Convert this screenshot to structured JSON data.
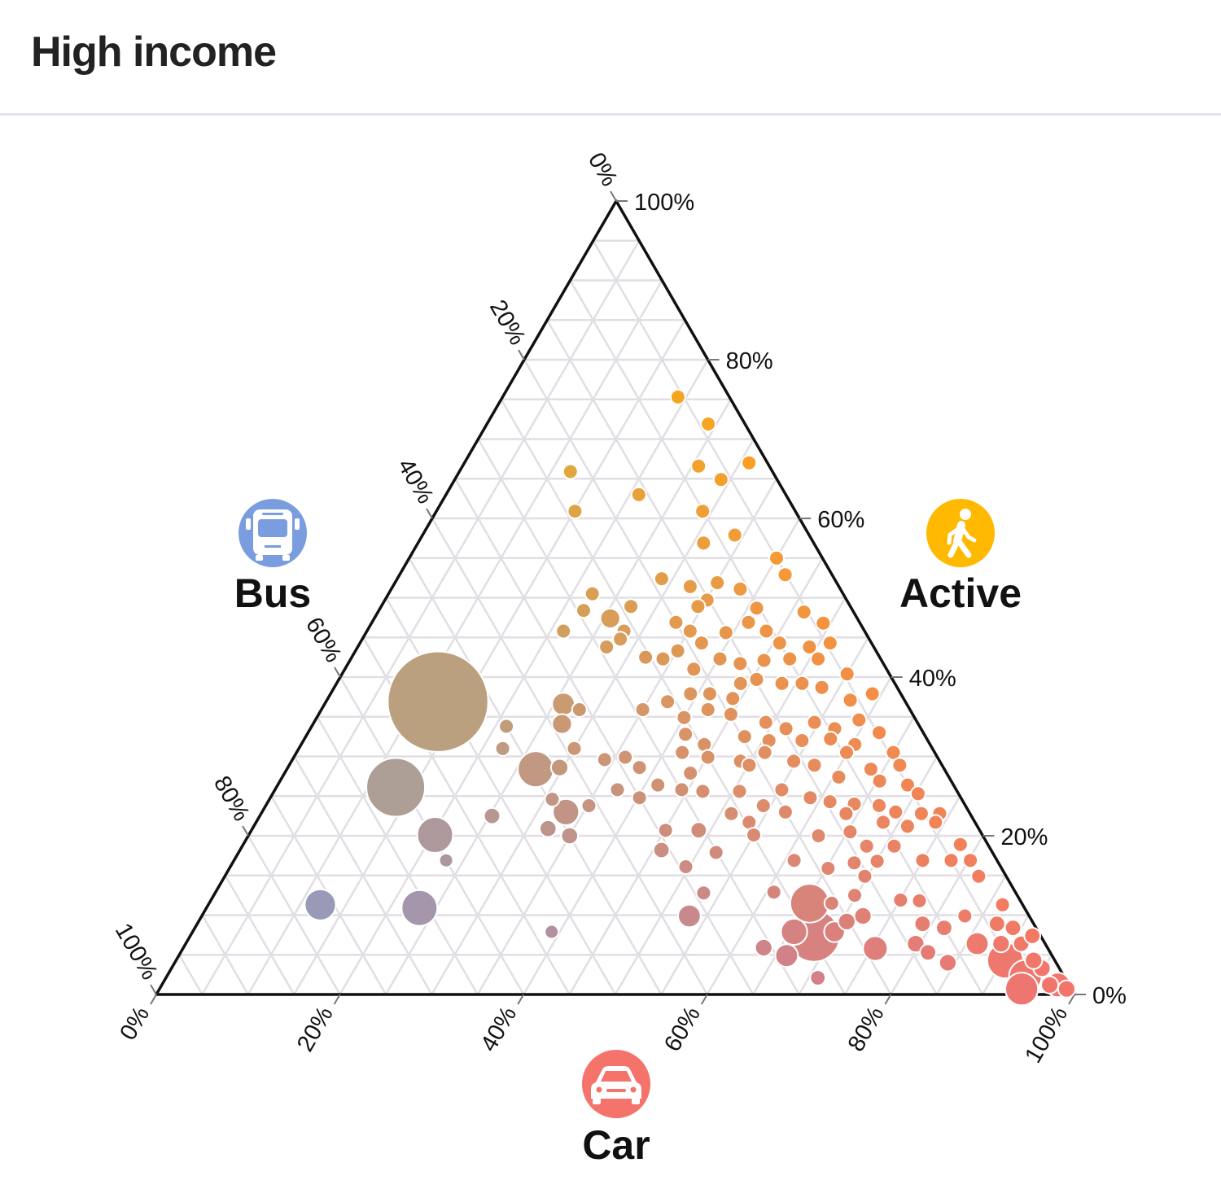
{
  "header": {
    "title": "High income"
  },
  "chart_data": {
    "type": "scatter",
    "subtype": "ternary",
    "title": "High income",
    "axes": {
      "car": {
        "label": "Car",
        "icon": "car-icon",
        "color": "#f4736b",
        "ticks": [
          "0%",
          "20%",
          "40%",
          "60%",
          "80%",
          "100%"
        ]
      },
      "active": {
        "label": "Active",
        "icon": "walking-person-icon",
        "color": "#ffb400",
        "ticks": [
          "0%",
          "20%",
          "40%",
          "60%",
          "80%",
          "100%"
        ]
      },
      "bus": {
        "label": "Bus",
        "icon": "bus-icon",
        "color": "#7a9de0",
        "ticks": [
          "0%",
          "20%",
          "40%",
          "60%",
          "80%",
          "100%"
        ]
      }
    },
    "grid": true,
    "grid_step_percent": 5,
    "point_fields": [
      "car_pct",
      "active_pct",
      "relative_size"
    ],
    "points": [
      [
        19.1,
        75.3,
        1
      ],
      [
        24.1,
        71.9,
        1
      ],
      [
        31.0,
        67.0,
        1
      ],
      [
        25.7,
        66.6,
        1
      ],
      [
        29.0,
        64.9,
        1
      ],
      [
        12.1,
        65.9,
        1
      ],
      [
        21.0,
        63.0,
        1
      ],
      [
        15.1,
        60.9,
        1
      ],
      [
        29.0,
        60.9,
        1
      ],
      [
        34.0,
        57.9,
        1
      ],
      [
        31.1,
        56.9,
        1
      ],
      [
        40.0,
        55.0,
        1
      ],
      [
        42.0,
        52.9,
        1
      ],
      [
        28.8,
        52.4,
        1
      ],
      [
        32.4,
        51.4,
        1
      ],
      [
        35.1,
        51.9,
        1
      ],
      [
        38.0,
        51.1,
        1
      ],
      [
        22.2,
        50.5,
        1
      ],
      [
        22.3,
        48.4,
        1
      ],
      [
        25.7,
        47.4,
        1.8
      ],
      [
        27.2,
        48.9,
        1
      ],
      [
        35.1,
        49.7,
        1
      ],
      [
        34.5,
        48.9,
        1
      ],
      [
        41.0,
        48.7,
        1
      ],
      [
        46.4,
        48.2,
        1
      ],
      [
        49.2,
        46.8,
        1
      ],
      [
        21.4,
        45.8,
        1
      ],
      [
        28.0,
        45.8,
        1
      ],
      [
        28.1,
        44.8,
        1
      ],
      [
        27.1,
        43.8,
        1
      ],
      [
        33.1,
        46.9,
        1
      ],
      [
        35.2,
        45.8,
        1
      ],
      [
        39.2,
        45.6,
        1
      ],
      [
        41.0,
        46.9,
        1
      ],
      [
        43.5,
        45.8,
        1
      ],
      [
        45.7,
        44.3,
        1
      ],
      [
        49.2,
        43.8,
        1
      ],
      [
        51.2,
        44.3,
        1
      ],
      [
        32.0,
        42.5,
        1
      ],
      [
        34.0,
        42.3,
        1
      ],
      [
        35.1,
        43.3,
        1
      ],
      [
        37.2,
        44.3,
        1
      ],
      [
        38.0,
        41.0,
        1
      ],
      [
        40.2,
        42.3,
        1
      ],
      [
        42.7,
        41.7,
        1
      ],
      [
        45.1,
        42.1,
        1
      ],
      [
        47.8,
        42.3,
        1
      ],
      [
        50.9,
        42.3,
        1
      ],
      [
        55.0,
        40.4,
        1
      ],
      [
        44.0,
        39.2,
        1
      ],
      [
        45.5,
        39.7,
        1
      ],
      [
        48.5,
        39.2,
        1
      ],
      [
        50.7,
        39.2,
        1
      ],
      [
        53.1,
        38.7,
        1
      ],
      [
        57.0,
        37.1,
        1
      ],
      [
        59.0,
        37.9,
        1
      ],
      [
        37.2,
        36.9,
        1
      ],
      [
        39.2,
        37.9,
        1
      ],
      [
        41.3,
        37.9,
        1
      ],
      [
        44.1,
        37.3,
        1
      ],
      [
        35.0,
        35.9,
        1
      ],
      [
        26.0,
        36.6,
        2.4
      ],
      [
        28.1,
        35.9,
        1
      ],
      [
        27.1,
        34.1,
        1.8
      ],
      [
        21.2,
        33.8,
        1
      ],
      [
        12.2,
        36.9,
        47
      ],
      [
        40.0,
        34.9,
        1
      ],
      [
        42.1,
        35.9,
        1
      ],
      [
        44.9,
        35.3,
        1
      ],
      [
        49.2,
        34.3,
        1
      ],
      [
        51.8,
        33.5,
        1
      ],
      [
        54.5,
        34.3,
        1
      ],
      [
        57.1,
        33.5,
        1
      ],
      [
        59.2,
        34.6,
        1
      ],
      [
        62.2,
        33.0,
        1
      ],
      [
        41.2,
        32.8,
        1
      ],
      [
        43.9,
        31.5,
        1
      ],
      [
        47.8,
        32.5,
        1
      ],
      [
        50.7,
        32.0,
        1
      ],
      [
        54.3,
        32.0,
        1
      ],
      [
        57.3,
        32.2,
        1
      ],
      [
        60.3,
        31.5,
        1
      ],
      [
        65.0,
        30.5,
        1
      ],
      [
        22.2,
        31.0,
        1
      ],
      [
        30.0,
        31.0,
        1
      ],
      [
        42.0,
        30.5,
        1
      ],
      [
        45.1,
        29.9,
        1
      ],
      [
        48.9,
        29.4,
        1
      ],
      [
        51.0,
        30.5,
        1
      ],
      [
        54.7,
        29.4,
        1
      ],
      [
        57.2,
        28.9,
        1
      ],
      [
        59.9,
        30.5,
        1
      ],
      [
        63.6,
        28.4,
        1
      ],
      [
        66.5,
        28.9,
        1
      ],
      [
        27.1,
        28.4,
        6
      ],
      [
        29.6,
        28.6,
        1.4
      ],
      [
        34.0,
        29.6,
        1
      ],
      [
        36.1,
        29.9,
        1
      ],
      [
        38.3,
        28.6,
        1
      ],
      [
        44.2,
        27.9,
        1
      ],
      [
        50.1,
        28.9,
        1
      ],
      [
        60.6,
        27.4,
        1
      ],
      [
        65.3,
        26.9,
        1
      ],
      [
        68.6,
        26.4,
        1
      ],
      [
        70.3,
        25.3,
        1
      ],
      [
        13.0,
        26.1,
        16
      ],
      [
        37.3,
        25.8,
        1
      ],
      [
        41.4,
        26.4,
        1
      ],
      [
        44.3,
        25.8,
        1
      ],
      [
        46.7,
        25.6,
        1
      ],
      [
        50.7,
        25.6,
        1
      ],
      [
        55.2,
        25.8,
        1
      ],
      [
        58.8,
        24.8,
        1
      ],
      [
        61.2,
        24.3,
        1
      ],
      [
        64.0,
        24.0,
        1
      ],
      [
        66.8,
        23.8,
        1
      ],
      [
        69.0,
        23.0,
        1
      ],
      [
        71.9,
        22.8,
        1
      ],
      [
        73.9,
        22.8,
        1
      ],
      [
        30.8,
        24.6,
        1
      ],
      [
        33.1,
        23.0,
        3.2
      ],
      [
        35.2,
        23.8,
        1
      ],
      [
        40.2,
        24.8,
        1
      ],
      [
        54.2,
        23.8,
        1
      ],
      [
        57.0,
        23.0,
        1
      ],
      [
        63.7,
        22.8,
        1
      ],
      [
        68.3,
        21.7,
        1
      ],
      [
        71.2,
        21.2,
        1
      ],
      [
        74.0,
        21.7,
        1
      ],
      [
        25.3,
        22.5,
        1.2
      ],
      [
        20.3,
        20.1,
        6
      ],
      [
        32.2,
        20.9,
        1.3
      ],
      [
        35.0,
        20.0,
        1.3
      ],
      [
        51.2,
        22.8,
        1
      ],
      [
        53.7,
        21.7,
        1
      ],
      [
        48.7,
        20.7,
        1.2
      ],
      [
        55.0,
        20.1,
        1
      ],
      [
        62.1,
        20.0,
        1
      ],
      [
        65.3,
        20.5,
        1
      ],
      [
        68.0,
        18.7,
        1
      ],
      [
        71.0,
        18.7,
        1
      ],
      [
        78.1,
        18.9,
        1
      ],
      [
        45.1,
        20.7,
        1
      ],
      [
        45.9,
        18.2,
        1.2
      ],
      [
        23.1,
        16.9,
        0.9
      ],
      [
        52.0,
        17.9,
        1
      ],
      [
        61.0,
        16.9,
        1
      ],
      [
        67.7,
        16.6,
        1
      ],
      [
        70.1,
        16.8,
        1
      ],
      [
        75.0,
        16.9,
        1
      ],
      [
        78.1,
        16.9,
        1
      ],
      [
        80.2,
        16.9,
        1
      ],
      [
        82.1,
        14.9,
        1
      ],
      [
        49.6,
        16.1,
        1
      ],
      [
        65.2,
        15.9,
        1
      ],
      [
        69.7,
        14.9,
        1
      ],
      [
        53.2,
        12.8,
        1
      ],
      [
        60.8,
        12.9,
        1
      ],
      [
        65.4,
        11.5,
        7
      ],
      [
        67.8,
        11.5,
        1
      ],
      [
        69.8,
        12.5,
        1
      ],
      [
        75.1,
        11.9,
        1
      ],
      [
        77.2,
        11.8,
        1
      ],
      [
        83.1,
        9.9,
        1
      ],
      [
        86.5,
        11.3,
        1
      ],
      [
        12.2,
        11.3,
        4.5
      ],
      [
        23.2,
        10.9,
        6
      ],
      [
        53.1,
        9.9,
        2.4
      ],
      [
        67.9,
        7.4,
        12.6
      ],
      [
        65.5,
        7.9,
        3.2
      ],
      [
        69.9,
        7.9,
        2
      ],
      [
        70.6,
        9.2,
        1.4
      ],
      [
        72.0,
        9.9,
        1.4
      ],
      [
        75.4,
        5.8,
        2.8
      ],
      [
        63.2,
        5.9,
        1.4
      ],
      [
        66.2,
        4.9,
        2.4
      ],
      [
        71.0,
        2.1,
        1.1
      ],
      [
        39.1,
        7.9,
        0.9
      ],
      [
        79.0,
        8.9,
        1.2
      ],
      [
        79.5,
        6.4,
        1.4
      ],
      [
        81.4,
        5.3,
        1.2
      ],
      [
        84.2,
        4.0,
        1.4
      ],
      [
        86.2,
        6.4,
        2.4
      ],
      [
        87.1,
        8.9,
        1.2
      ],
      [
        89.1,
        8.4,
        1.2
      ],
      [
        91.0,
        6.4,
        1.2
      ],
      [
        90.3,
        4.3,
        6
      ],
      [
        93.5,
        2.3,
        5
      ],
      [
        94.8,
        3.3,
        1.4
      ],
      [
        96.7,
        1.2,
        1.4
      ],
      [
        97.6,
        1.2,
        2.8
      ],
      [
        93.4,
        4.3,
        1.4
      ],
      [
        93.9,
        0.7,
        5
      ],
      [
        98.8,
        0.7,
        1.4
      ],
      [
        91.7,
        7.4,
        1.2
      ],
      [
        81.6,
        8.4,
        1.2
      ],
      [
        88.8,
        6.4,
        1.4
      ]
    ]
  }
}
